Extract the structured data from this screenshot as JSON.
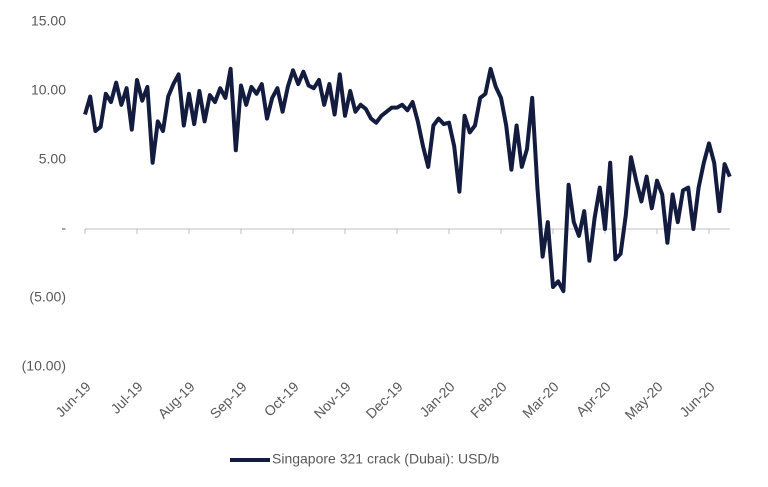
{
  "chart_data": {
    "type": "line",
    "categories": [
      "Jun-19",
      null,
      null,
      null,
      null,
      null,
      null,
      null,
      null,
      null,
      "Jul-19",
      null,
      null,
      null,
      null,
      null,
      null,
      null,
      null,
      null,
      "Aug-19",
      null,
      null,
      null,
      null,
      null,
      null,
      null,
      null,
      null,
      "Sep-19",
      null,
      null,
      null,
      null,
      null,
      null,
      null,
      null,
      null,
      "Oct-19",
      null,
      null,
      null,
      null,
      null,
      null,
      null,
      null,
      null,
      "Nov-19",
      null,
      null,
      null,
      null,
      null,
      null,
      null,
      null,
      null,
      "Dec-19",
      null,
      null,
      null,
      null,
      null,
      null,
      null,
      null,
      null,
      "Jan-20",
      null,
      null,
      null,
      null,
      null,
      null,
      null,
      null,
      null,
      "Feb-20",
      null,
      null,
      null,
      null,
      null,
      null,
      null,
      null,
      null,
      "Mar-20",
      null,
      null,
      null,
      null,
      null,
      null,
      null,
      null,
      null,
      "Apr-20",
      null,
      null,
      null,
      null,
      null,
      null,
      null,
      null,
      null,
      "May-20",
      null,
      null,
      null,
      null,
      null,
      null,
      null,
      null,
      null,
      "Jun-20",
      null,
      null,
      null,
      null
    ],
    "series": [
      {
        "name": "Singapore 321 crack (Dubai): USD/b",
        "color": "#131c3e",
        "values": [
          8.3,
          9.6,
          7.1,
          7.4,
          9.8,
          9.2,
          10.6,
          9.0,
          10.2,
          7.2,
          10.8,
          9.3,
          10.3,
          4.8,
          7.8,
          7.1,
          9.6,
          10.5,
          11.2,
          7.5,
          9.8,
          7.6,
          10.0,
          7.8,
          9.7,
          9.2,
          10.2,
          9.5,
          11.6,
          5.7,
          10.4,
          9.0,
          10.3,
          9.8,
          10.5,
          8.0,
          9.5,
          10.2,
          8.5,
          10.3,
          11.5,
          10.5,
          11.4,
          10.4,
          10.2,
          10.8,
          9.0,
          10.5,
          8.3,
          11.2,
          8.2,
          10.0,
          8.5,
          9.0,
          8.7,
          8.0,
          7.7,
          8.2,
          8.5,
          8.8,
          8.8,
          9.0,
          8.6,
          9.2,
          7.8,
          6.0,
          4.5,
          7.5,
          8.0,
          7.6,
          7.7,
          6.0,
          2.7,
          8.2,
          7.0,
          7.5,
          9.5,
          9.8,
          11.6,
          10.3,
          9.5,
          7.5,
          4.3,
          7.5,
          4.5,
          5.8,
          9.5,
          3.0,
          -2.0,
          0.5,
          -4.2,
          -3.8,
          -4.5,
          3.2,
          0.5,
          -0.5,
          1.3,
          -2.3,
          0.8,
          3.0,
          0.0,
          4.8,
          -2.2,
          -1.8,
          1.0,
          5.2,
          3.5,
          2.0,
          3.8,
          1.5,
          3.5,
          2.5,
          -1.0,
          2.5,
          0.5,
          2.8,
          3.0,
          0.0,
          3.0,
          4.8,
          6.2,
          4.8,
          1.3,
          4.7,
          3.8
        ]
      }
    ],
    "ylim": [
      -10,
      15
    ],
    "yticks": [
      {
        "value": 15,
        "label": "15.00"
      },
      {
        "value": 10,
        "label": "10.00"
      },
      {
        "value": 5,
        "label": "5.00"
      },
      {
        "value": 0,
        "label": "-"
      },
      {
        "value": -5,
        "label": "(5.00)"
      },
      {
        "value": -10,
        "label": "(10.00)"
      }
    ],
    "legend": "bottom"
  }
}
